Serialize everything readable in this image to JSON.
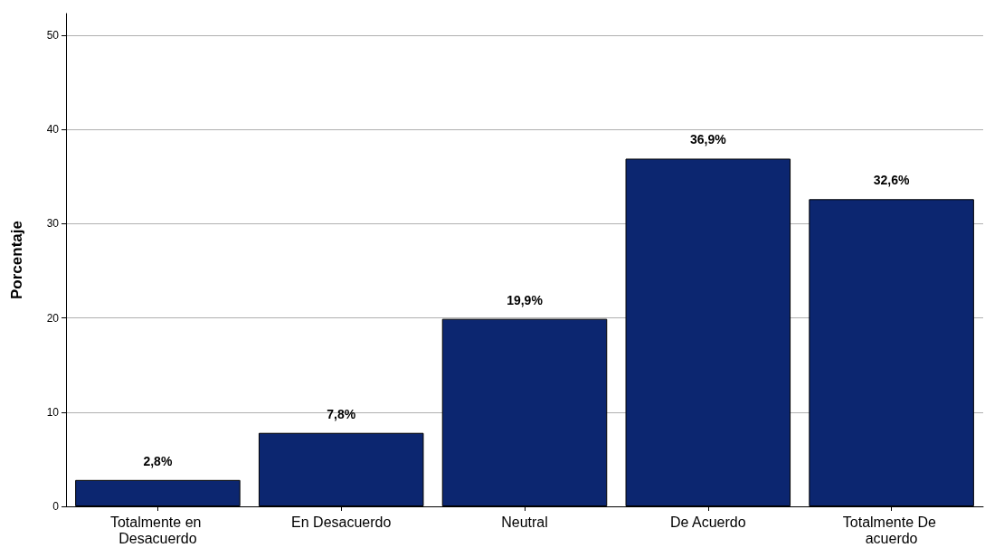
{
  "chart_data": {
    "type": "bar",
    "ylabel": "Porcentaje",
    "categories": [
      "Totalmente en Desacuerdo",
      "En Desacuerdo",
      "Neutral",
      "De Acuerdo",
      "Totalmente De acuerdo"
    ],
    "values": [
      2.8,
      7.8,
      19.9,
      36.9,
      32.6
    ],
    "value_labels": [
      "2,8%",
      "7,8%",
      "19,9%",
      "36,9%",
      "32,6%"
    ],
    "color": "#0c2670",
    "ylim": [
      0,
      52.3
    ],
    "yticks": [
      0,
      10,
      20,
      30,
      40,
      50
    ],
    "grid": "y"
  }
}
